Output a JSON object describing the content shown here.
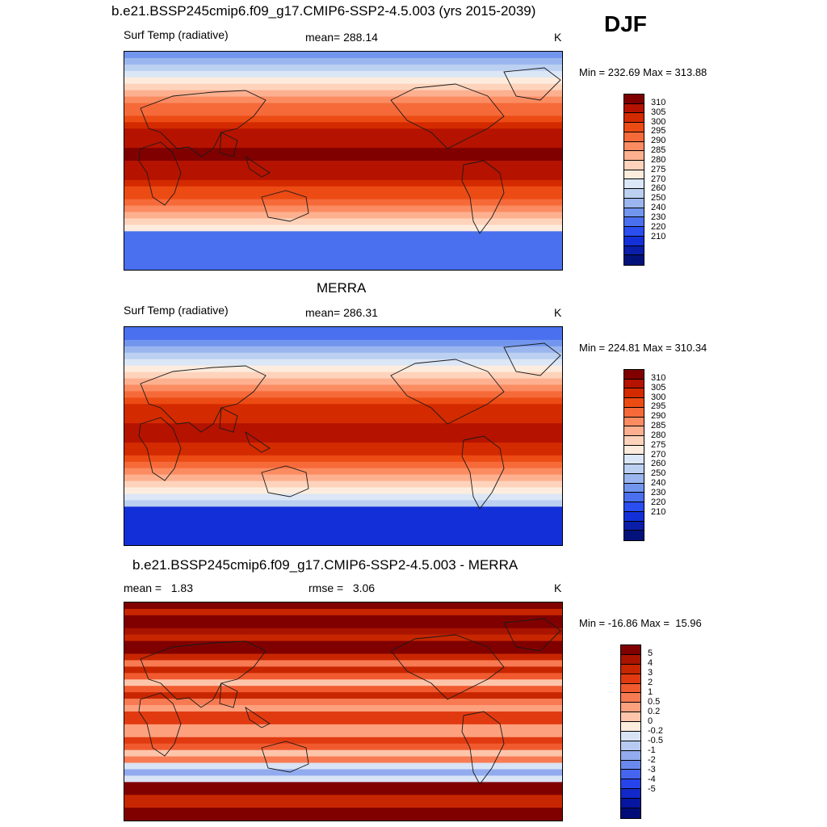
{
  "season": "DJF",
  "panels": [
    {
      "title": "b.e21.BSSP245cmip6.f09_g17.CMIP6-SSP2-4.5.003 (yrs 2015-2039)",
      "variable": "Surf Temp (radiative)",
      "stat": "mean= 288.14",
      "units": "K",
      "minmax": "Min = 232.69 Max = 313.88",
      "colors": [
        "#800000",
        "#b51200",
        "#d42a00",
        "#ec4b14",
        "#f66a3a",
        "#fb8c62",
        "#fdb08f",
        "#fed3bc",
        "#fdecde",
        "#dbe6f6",
        "#bcd0f1",
        "#9bb6ef",
        "#7295ee",
        "#4a70ef",
        "#2a4ef0",
        "#1330d8",
        "#0a1eaa",
        "#03127a"
      ],
      "labels": [
        "310",
        "305",
        "300",
        "295",
        "290",
        "285",
        "280",
        "275",
        "270",
        "260",
        "250",
        "240",
        "230",
        "220",
        "210"
      ],
      "fields": {
        "pole": 0.3,
        "band": 0.95,
        "south": 0.25
      }
    },
    {
      "title": "MERRA",
      "variable": "Surf Temp (radiative)",
      "stat": "mean= 286.31",
      "units": "K",
      "minmax": "Min = 224.81 Max = 310.34",
      "colors": [
        "#800000",
        "#b51200",
        "#d42a00",
        "#ec4b14",
        "#f66a3a",
        "#fb8c62",
        "#fdb08f",
        "#fed3bc",
        "#fdecde",
        "#dbe6f6",
        "#bcd0f1",
        "#9bb6ef",
        "#7295ee",
        "#4a70ef",
        "#2a4ef0",
        "#1330d8",
        "#0a1eaa",
        "#03127a"
      ],
      "labels": [
        "310",
        "305",
        "300",
        "295",
        "290",
        "285",
        "280",
        "275",
        "270",
        "260",
        "250",
        "240",
        "230",
        "220",
        "210"
      ],
      "fields": {
        "pole": 0.2,
        "band": 0.9,
        "south": 0.15
      }
    },
    {
      "title": "b.e21.BSSP245cmip6.f09_g17.CMIP6-SSP2-4.5.003 - MERRA",
      "variable": "mean =   1.83",
      "stat": "rmse =   3.06",
      "units": "K",
      "minmax": "Min = -16.86 Max =  15.96",
      "colors": [
        "#800000",
        "#a81400",
        "#c72600",
        "#e23a10",
        "#f15a2e",
        "#f87a52",
        "#fca07e",
        "#fec5ab",
        "#ffeedd",
        "#d8e4f6",
        "#b7cbf2",
        "#92abee",
        "#6a89ee",
        "#4565ef",
        "#2743ec",
        "#1228c8",
        "#0616a0",
        "#020c78"
      ],
      "labels": [
        "5",
        "4",
        "3",
        "2",
        "1",
        "0.5",
        "0.2",
        "0",
        "-0.2",
        "-0.5",
        "-1",
        "-2",
        "-3",
        "-4",
        "-5"
      ],
      "fields": {
        "diff": true
      }
    }
  ]
}
